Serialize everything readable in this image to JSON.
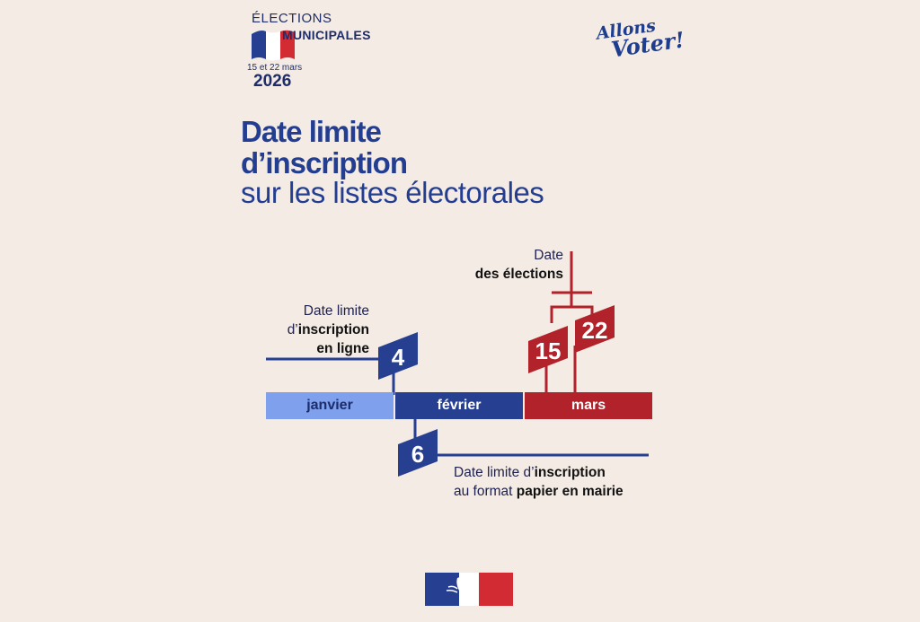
{
  "logo": {
    "elections": "ÉLECTIONS",
    "municipales": "MUNICIPALES",
    "dates": "15 et 22 mars",
    "year": "2026",
    "flag_colors": [
      "#263f91",
      "#ffffff",
      "#d22b33"
    ]
  },
  "slogan": {
    "line1": "Allons",
    "line2": "Voter!"
  },
  "title": {
    "line1": "Date limite",
    "line2": "d’inscription",
    "line3": "sur les listes électorales"
  },
  "timeline": {
    "months": [
      {
        "label": "janvier",
        "color": "#7fa0ec"
      },
      {
        "label": "février",
        "color": "#263f91"
      },
      {
        "label": "mars",
        "color": "#b1222b"
      }
    ],
    "online_deadline": {
      "day": "4",
      "line1": "Date limite",
      "line2_prefix": "d’",
      "line2_bold": "inscription",
      "line3_bold": "en ligne"
    },
    "paper_deadline": {
      "day": "6",
      "line1_text": "Date limite d’",
      "line1_bold": "inscription",
      "line2_text": "au format ",
      "line2_bold": "papier en mairie"
    },
    "election_dates": {
      "days": [
        "15",
        "22"
      ],
      "line1": "Date",
      "line2_bold": "des élections"
    }
  },
  "colors": {
    "blue": "#263f91",
    "red": "#b1222b",
    "light_blue": "#7fa0ec",
    "background": "#f3ebe4"
  }
}
